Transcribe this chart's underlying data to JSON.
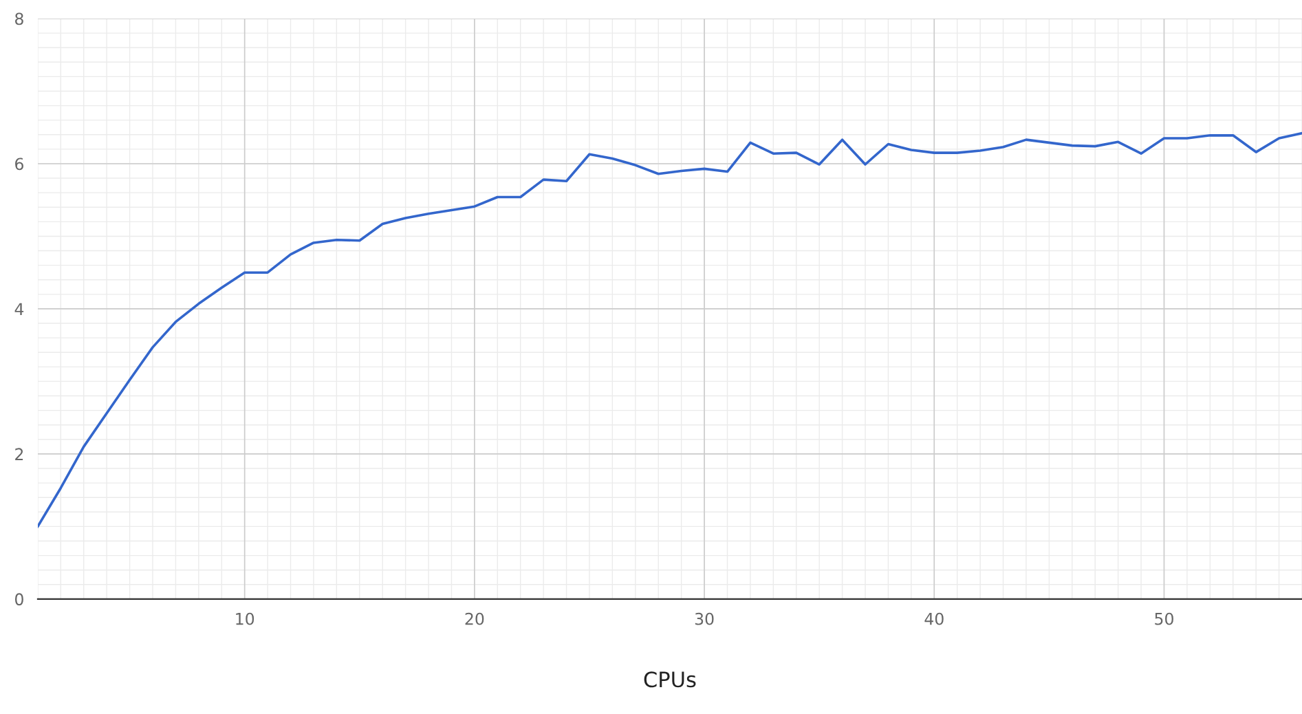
{
  "chart_data": {
    "type": "line",
    "xlabel": "CPUs",
    "x": [
      1,
      2,
      3,
      4,
      5,
      6,
      7,
      8,
      9,
      10,
      11,
      12,
      13,
      14,
      15,
      16,
      17,
      18,
      19,
      20,
      21,
      22,
      23,
      24,
      25,
      26,
      27,
      28,
      29,
      30,
      31,
      32,
      33,
      34,
      35,
      36,
      37,
      38,
      39,
      40,
      41,
      42,
      43,
      44,
      45,
      46,
      47,
      48,
      49,
      50,
      51,
      52,
      53,
      54,
      55,
      56
    ],
    "series": [
      {
        "color": "#3366cc",
        "values": [
          1.0,
          1.53,
          2.1,
          2.56,
          3.02,
          3.47,
          3.82,
          4.07,
          4.29,
          4.5,
          4.5,
          4.75,
          4.91,
          4.95,
          4.94,
          5.17,
          5.25,
          5.31,
          5.36,
          5.41,
          5.54,
          5.54,
          5.78,
          5.76,
          6.13,
          6.07,
          5.98,
          5.86,
          5.9,
          5.93,
          5.89,
          6.29,
          6.14,
          6.15,
          5.99,
          6.33,
          5.99,
          6.27,
          6.19,
          6.15,
          6.15,
          6.18,
          6.23,
          6.33,
          6.29,
          6.25,
          6.24,
          6.3,
          6.14,
          6.35,
          6.35,
          6.39,
          6.39,
          6.16,
          6.35,
          6.42
        ]
      }
    ],
    "xlim": [
      1,
      56
    ],
    "ylim": [
      0,
      8
    ],
    "xticks": [
      10,
      20,
      30,
      40,
      50
    ],
    "yticks": [
      0,
      2,
      4,
      6,
      8
    ],
    "grid": true,
    "legend": false,
    "marker": "none",
    "line_style": "solid"
  }
}
